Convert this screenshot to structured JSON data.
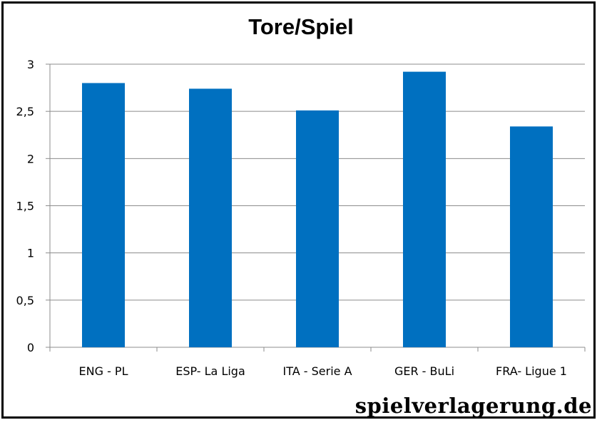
{
  "chart_data": {
    "type": "bar",
    "title": "Tore/Spiel",
    "categories": [
      "ENG - PL",
      "ESP- La Liga",
      "ITA - Serie A",
      "GER - BuLi",
      "FRA- Ligue 1"
    ],
    "values": [
      2.8,
      2.74,
      2.51,
      2.92,
      2.34
    ],
    "ylim": [
      0,
      3
    ],
    "yticks": [
      "0",
      "0,5",
      "1",
      "1,5",
      "2",
      "2,5",
      "3"
    ],
    "grid": true,
    "bar_color": "#0070C0",
    "xlabel": "",
    "ylabel": ""
  },
  "watermark": "spielverlagerung.de"
}
